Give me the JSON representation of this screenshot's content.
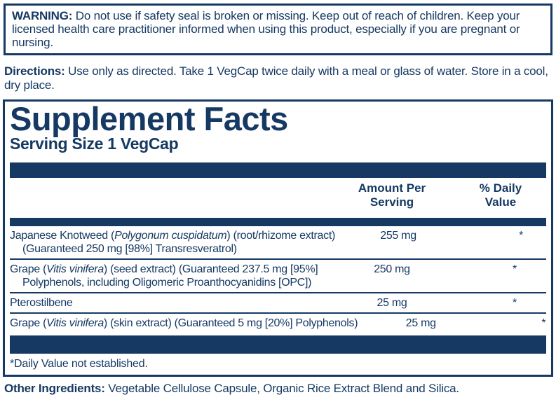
{
  "colors": {
    "navy": "#163963",
    "background": "#ffffff"
  },
  "warning": {
    "label": "WARNING:",
    "text": " Do not use if safety seal is broken or missing. Keep out of reach of children. Keep your licensed health care practitioner informed when using this product, especially if you are pregnant or nursing."
  },
  "directions": {
    "label": "Directions:",
    "text": " Use only as directed. Take 1 VegCap twice daily with a meal or glass of water. Store in a cool, dry place."
  },
  "supplement_facts": {
    "title": "Supplement Facts",
    "serving_size": "Serving Size 1 VegCap",
    "columns": {
      "amount": [
        "Amount Per",
        "Serving"
      ],
      "daily_value": [
        "% Daily",
        "Value"
      ]
    },
    "rows": [
      {
        "name": [
          {
            "t": "Japanese Knotweed ("
          },
          {
            "t": "Polygonum cuspidatum",
            "italic": true
          },
          {
            "t": ") (root/rhizome extract)"
          }
        ],
        "name_line2": "(Guaranteed 250 mg [98%] Transresveratrol)",
        "amount": "255 mg",
        "daily_value": "*"
      },
      {
        "name": [
          {
            "t": "Grape ("
          },
          {
            "t": "Vitis vinifera",
            "italic": true
          },
          {
            "t": ") (seed extract) (Guaranteed 237.5 mg [95%]"
          }
        ],
        "name_line2": "Polyphenols, including Oligomeric Proanthocyanidins [OPC])",
        "amount": "250 mg",
        "daily_value": "*"
      },
      {
        "name": [
          {
            "t": "Pterostilbene"
          }
        ],
        "name_line2": "",
        "amount": "25 mg",
        "daily_value": "*"
      },
      {
        "name": [
          {
            "t": "Grape ("
          },
          {
            "t": "Vitis vinifera",
            "italic": true
          },
          {
            "t": ") (skin extract) (Guaranteed 5 mg [20%] Polyphenols)"
          }
        ],
        "name_line2": "",
        "amount": "25 mg",
        "daily_value": "*"
      }
    ],
    "footnote": "*Daily Value not established."
  },
  "other_ingredients": {
    "label": "Other Ingredients:",
    "text": " Vegetable Cellulose Capsule, Organic Rice Extract Blend and Silica."
  }
}
